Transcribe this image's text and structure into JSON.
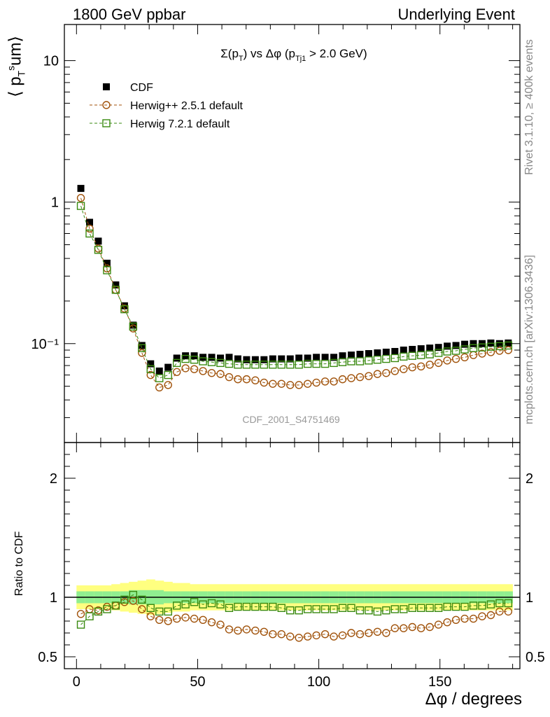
{
  "header": {
    "left": "1800 GeV ppbar",
    "right": "Underlying Event"
  },
  "side_text": {
    "rivet": "Rivet 3.1.10, ≥ 400k events",
    "mcplots": "mcplots.cern.ch [arXiv:1306.3436]"
  },
  "chart_data": [
    {
      "type": "scatter",
      "title": "Σ(p_T) vs Δφ (p_Tj1 > 2.0 GeV)",
      "watermark": "CDF_2001_S4751469",
      "ylabel": "⟨ p_T^sum ⟩",
      "yscale": "log",
      "ylim": [
        0.02,
        18
      ],
      "xlim": [
        -5,
        183
      ],
      "yticks": [
        "10⁻¹",
        "1",
        "10"
      ],
      "legend_position": "top-left",
      "x": [
        1.8,
        5.4,
        9.0,
        12.6,
        16.2,
        19.8,
        23.4,
        27.0,
        30.6,
        34.2,
        37.8,
        41.4,
        45.0,
        48.6,
        52.2,
        55.8,
        59.4,
        63.0,
        66.6,
        70.2,
        73.8,
        77.4,
        81.0,
        84.6,
        88.2,
        91.8,
        95.4,
        99.0,
        102.6,
        106.2,
        109.8,
        113.4,
        117.0,
        120.6,
        124.2,
        127.8,
        131.4,
        135.0,
        138.6,
        142.2,
        145.8,
        149.4,
        153.0,
        156.6,
        160.2,
        163.8,
        167.4,
        171.0,
        174.6,
        178.2
      ],
      "series": [
        {
          "name": "CDF",
          "color": "#000000",
          "marker": "filled-square",
          "values": [
            1.25,
            0.72,
            0.53,
            0.37,
            0.26,
            0.185,
            0.135,
            0.097,
            0.072,
            0.064,
            0.068,
            0.079,
            0.082,
            0.082,
            0.08,
            0.08,
            0.079,
            0.08,
            0.078,
            0.077,
            0.077,
            0.077,
            0.078,
            0.078,
            0.078,
            0.079,
            0.079,
            0.08,
            0.08,
            0.08,
            0.082,
            0.083,
            0.084,
            0.085,
            0.086,
            0.087,
            0.088,
            0.09,
            0.091,
            0.092,
            0.093,
            0.094,
            0.096,
            0.097,
            0.099,
            0.1,
            0.1,
            0.101,
            0.1,
            0.101
          ]
        },
        {
          "name": "Herwig++ 2.5.1 default",
          "color": "#a0520a",
          "marker": "open-circle",
          "values": [
            1.07,
            0.65,
            0.47,
            0.34,
            0.24,
            0.177,
            0.128,
            0.086,
            0.06,
            0.049,
            0.051,
            0.063,
            0.067,
            0.066,
            0.064,
            0.062,
            0.061,
            0.058,
            0.056,
            0.056,
            0.055,
            0.053,
            0.052,
            0.052,
            0.051,
            0.051,
            0.052,
            0.053,
            0.054,
            0.054,
            0.056,
            0.057,
            0.058,
            0.059,
            0.061,
            0.062,
            0.064,
            0.066,
            0.068,
            0.069,
            0.071,
            0.073,
            0.076,
            0.078,
            0.08,
            0.083,
            0.085,
            0.087,
            0.089,
            0.09
          ]
        },
        {
          "name": "Herwig 7.2.1 default",
          "color": "#3a8a10",
          "marker": "open-square",
          "values": [
            0.94,
            0.6,
            0.46,
            0.33,
            0.24,
            0.175,
            0.132,
            0.093,
            0.066,
            0.057,
            0.06,
            0.073,
            0.078,
            0.077,
            0.075,
            0.074,
            0.073,
            0.072,
            0.071,
            0.071,
            0.071,
            0.071,
            0.071,
            0.071,
            0.071,
            0.071,
            0.072,
            0.072,
            0.072,
            0.073,
            0.074,
            0.075,
            0.075,
            0.076,
            0.077,
            0.078,
            0.079,
            0.081,
            0.082,
            0.083,
            0.084,
            0.086,
            0.088,
            0.089,
            0.091,
            0.093,
            0.094,
            0.095,
            0.096,
            0.097
          ]
        }
      ]
    },
    {
      "type": "scatter",
      "ylabel": "Ratio to CDF",
      "xlabel": "Δφ / degrees",
      "ylim": [
        0.4,
        2.3
      ],
      "xlim": [
        -5,
        183
      ],
      "xticks": [
        0,
        50,
        100,
        150
      ],
      "yticks": [
        0.5,
        1,
        2
      ],
      "band_stat_color": "#90ee90",
      "band_total_color": "#ffff80",
      "band_stat": [
        0.05,
        0.05,
        0.05,
        0.05,
        0.05,
        0.05,
        0.06,
        0.06,
        0.06,
        0.06,
        0.05,
        0.05,
        0.05,
        0.05,
        0.05,
        0.05,
        0.05,
        0.05,
        0.05,
        0.05,
        0.05,
        0.05,
        0.05,
        0.05,
        0.05,
        0.05,
        0.05,
        0.05,
        0.05,
        0.05,
        0.05,
        0.05,
        0.05,
        0.05,
        0.05,
        0.05,
        0.05,
        0.05,
        0.05,
        0.05,
        0.05,
        0.05,
        0.05,
        0.05,
        0.05,
        0.05,
        0.05,
        0.05,
        0.05,
        0.05
      ],
      "band_total": [
        0.1,
        0.1,
        0.1,
        0.1,
        0.11,
        0.12,
        0.13,
        0.14,
        0.15,
        0.14,
        0.13,
        0.12,
        0.12,
        0.11,
        0.11,
        0.11,
        0.11,
        0.11,
        0.11,
        0.11,
        0.11,
        0.11,
        0.11,
        0.11,
        0.11,
        0.11,
        0.11,
        0.11,
        0.11,
        0.11,
        0.11,
        0.11,
        0.11,
        0.11,
        0.11,
        0.11,
        0.11,
        0.11,
        0.11,
        0.11,
        0.11,
        0.11,
        0.11,
        0.11,
        0.11,
        0.11,
        0.11,
        0.11,
        0.11,
        0.11
      ],
      "series": [
        {
          "name": "Herwig++ 2.5.1 default",
          "color": "#a0520a",
          "marker": "open-circle",
          "values": [
            0.86,
            0.9,
            0.89,
            0.92,
            0.93,
            0.96,
            0.97,
            0.9,
            0.84,
            0.81,
            0.8,
            0.82,
            0.83,
            0.82,
            0.81,
            0.79,
            0.77,
            0.73,
            0.72,
            0.73,
            0.72,
            0.71,
            0.69,
            0.69,
            0.67,
            0.66,
            0.67,
            0.68,
            0.69,
            0.67,
            0.68,
            0.7,
            0.69,
            0.7,
            0.71,
            0.7,
            0.74,
            0.74,
            0.75,
            0.74,
            0.75,
            0.77,
            0.79,
            0.81,
            0.82,
            0.82,
            0.84,
            0.85,
            0.88,
            0.88
          ]
        },
        {
          "name": "Herwig 7.2.1 default",
          "color": "#3a8a10",
          "marker": "open-square",
          "values": [
            0.77,
            0.84,
            0.88,
            0.9,
            0.93,
            0.98,
            1.02,
            0.98,
            0.91,
            0.88,
            0.88,
            0.93,
            0.94,
            0.96,
            0.94,
            0.95,
            0.94,
            0.91,
            0.92,
            0.92,
            0.92,
            0.92,
            0.92,
            0.91,
            0.89,
            0.89,
            0.9,
            0.9,
            0.9,
            0.9,
            0.91,
            0.91,
            0.89,
            0.89,
            0.88,
            0.89,
            0.9,
            0.9,
            0.91,
            0.91,
            0.91,
            0.91,
            0.92,
            0.92,
            0.92,
            0.93,
            0.93,
            0.94,
            0.95,
            0.95
          ]
        }
      ]
    }
  ]
}
